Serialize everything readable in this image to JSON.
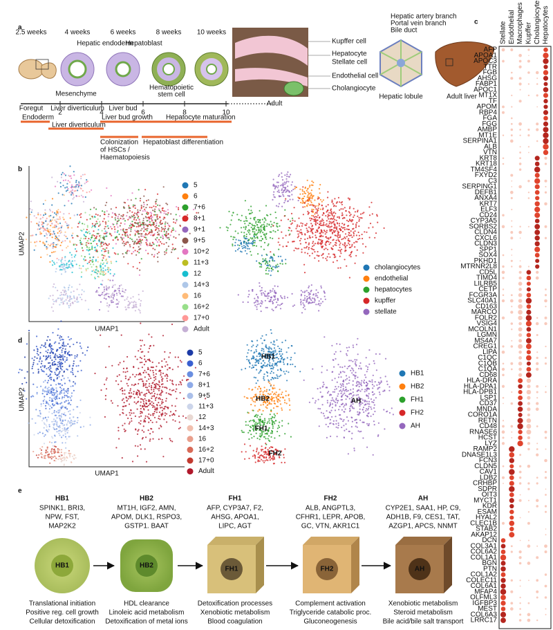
{
  "panel_labels": {
    "a": "a",
    "b": "b",
    "c": "c",
    "d": "d",
    "e": "e"
  },
  "panel_a": {
    "weeks": [
      "2.5 weeks",
      "4 weeks",
      "6 weeks",
      "8 weeks",
      "10 weeks"
    ],
    "hepatic_endoderm": "Hepatic endoderm",
    "hepatoblast": "Hepatoblast",
    "mesenchyme": "Mesenchyme",
    "stages": [
      "Foregut",
      "Liver diverticulum",
      "Liver bud"
    ],
    "hsc": [
      "Hematopoietic",
      "stem cell"
    ],
    "cells": [
      "Kupffer cell",
      "Hepatocyte",
      "Stellate cell",
      "Endothelial cell",
      "Cholangiocyte"
    ],
    "lobule_parts": [
      "Hepatic artery branch",
      "Portal vein branch",
      "Bile duct"
    ],
    "hepatic_lobule": "Hepatic lobule",
    "adult_liver": "Adult liver",
    "timeline_ticks": [
      2,
      4,
      6,
      8,
      10
    ],
    "timeline_end": "Adult",
    "timeline_bars": [
      "Endoderm",
      "Liver diverticulum",
      "Liver bud growth",
      "Hepatocyte maturation",
      "Colonization",
      "of HSCs /",
      "Haematopoiesis",
      "Hepatoblast differentiation"
    ]
  },
  "panel_b": {
    "y_label": "UMAP2",
    "x_label": "UMAP1",
    "stages": [
      {
        "name": "5",
        "color": "#1f77b4"
      },
      {
        "name": "6",
        "color": "#ff7f0e"
      },
      {
        "name": "7+6",
        "color": "#2ca02c"
      },
      {
        "name": "8+1",
        "color": "#d62728"
      },
      {
        "name": "9+1",
        "color": "#9467bd"
      },
      {
        "name": "9+5",
        "color": "#8c564b"
      },
      {
        "name": "10+2",
        "color": "#e377c2"
      },
      {
        "name": "11+3",
        "color": "#bcbd22"
      },
      {
        "name": "12",
        "color": "#17becf"
      },
      {
        "name": "14+3",
        "color": "#aec7e8"
      },
      {
        "name": "16",
        "color": "#ffbb78"
      },
      {
        "name": "16+2",
        "color": "#98df8a"
      },
      {
        "name": "17+0",
        "color": "#ff9896"
      },
      {
        "name": "Adult",
        "color": "#c5b0d5"
      }
    ],
    "cell_types": [
      {
        "name": "cholangiocytes",
        "color": "#1f77b4"
      },
      {
        "name": "endothelial",
        "color": "#ff7f0e"
      },
      {
        "name": "hepatocytes",
        "color": "#2ca02c"
      },
      {
        "name": "kupffer",
        "color": "#d62728"
      },
      {
        "name": "stellate",
        "color": "#9467bd"
      }
    ]
  },
  "panel_c": {
    "columns": [
      {
        "name": "Stellate",
        "genes": [
          "DCN",
          "COL3A1",
          "COL6A2",
          "COL1A1",
          "BGN",
          "PTN",
          "COL1A2",
          "COLEC11",
          "COL6A1",
          "MFAP4",
          "OLFML3",
          "IGFBP3",
          "MEST",
          "COL6A3",
          "LRRC17"
        ]
      },
      {
        "name": "Endothelial",
        "genes": [
          "RAMP2",
          "DNASE1L3",
          "FCN3",
          "CLDN5",
          "CAV1",
          "LDB2",
          "CRHBP",
          "SDPR",
          "OIT3",
          "MYCT1",
          "KDR",
          "ESAM",
          "HYAL2",
          "CLEC1B",
          "STAB2",
          "AKAP12"
        ]
      },
      {
        "name": "Macrophages",
        "genes": [
          "HLA-DRA",
          "HLA-DPA1",
          "HLA-DPB1",
          "LSP1",
          "CD37",
          "MNDA",
          "CORO1A",
          "RETN",
          "CD48",
          "RNASE6",
          "HCST",
          "LYZ"
        ]
      },
      {
        "name": "Kupffer",
        "genes": [
          "CD5L",
          "TIMD4",
          "LILRB5",
          "CETP",
          "FCGR3A",
          "SLC40A1",
          "CD163",
          "MARCO",
          "FOLR2",
          "VSIG4",
          "MCOLN1",
          "LGMN",
          "MS4A7",
          "CREG1",
          "LIPA",
          "C1QC",
          "C1QB",
          "C1QA",
          "CD68"
        ]
      },
      {
        "name": "Cholangiocyte",
        "genes": [
          "KRT8",
          "KRT18",
          "TM4SF4",
          "FXYD2",
          "C3",
          "SERPING1",
          "DEFB1",
          "ANXA4",
          "KRT7",
          "ELF3",
          "CD24",
          "CYP3A5",
          "SORBS2",
          "CLDN4",
          "CXCL6",
          "CLDN3",
          "SPP1",
          "SOX4",
          "PKHD1",
          "MTRNR2L8"
        ]
      },
      {
        "name": "Hepatocytes",
        "genes": [
          "AFP",
          "APOA1",
          "APOC3",
          "TTR",
          "FGB",
          "AHSG",
          "FABP1",
          "APOC1",
          "MT1X",
          "TF",
          "APOM",
          "RBP4",
          "FGA",
          "FGG",
          "AMBP",
          "MT1E",
          "SERPINA1",
          "ALB",
          "VTN"
        ]
      }
    ]
  },
  "panel_d": {
    "y_label": "UMAP2",
    "x_label": "UMAP1",
    "stages": [
      {
        "name": "5",
        "color": "#1c3aa6"
      },
      {
        "name": "6",
        "color": "#3a5fd0"
      },
      {
        "name": "7+6",
        "color": "#6a8ee0"
      },
      {
        "name": "8+1",
        "color": "#8eaae8"
      },
      {
        "name": "9+5",
        "color": "#aabfe9"
      },
      {
        "name": "11+3",
        "color": "#ccd5ea"
      },
      {
        "name": "12",
        "color": "#e9d8d2"
      },
      {
        "name": "14+3",
        "color": "#f1bfae"
      },
      {
        "name": "16",
        "color": "#e99f8c"
      },
      {
        "name": "16+2",
        "color": "#d86a58"
      },
      {
        "name": "17+0",
        "color": "#c23a30"
      },
      {
        "name": "Adult",
        "color": "#b0182b"
      }
    ],
    "states": [
      {
        "name": "HB1",
        "color": "#1f77b4"
      },
      {
        "name": "HB2",
        "color": "#ff7f0e"
      },
      {
        "name": "FH1",
        "color": "#2ca02c"
      },
      {
        "name": "FH2",
        "color": "#d62728"
      },
      {
        "name": "AH",
        "color": "#9467bd"
      }
    ]
  },
  "panel_e": {
    "stages": [
      {
        "name": "HB1",
        "genes": [
          "SPINK1, BRI3,",
          "NPW, FST,",
          "MAP2K2"
        ],
        "functions": [
          "Translational initiation",
          "Positive reg. cell growth",
          "Cellular detoxification"
        ]
      },
      {
        "name": "HB2",
        "genes": [
          "MT1H, IGF2, AMN,",
          "APOM, DLK1, RSPO3,",
          "GSTP1. BAAT"
        ],
        "functions": [
          "HDL clearance",
          "Linoleic acid metabolism",
          "Detoxification of metal ions"
        ]
      },
      {
        "name": "FH1",
        "genes": [
          "AFP, CYP3A7, F2,",
          "AHSG, APOA1,",
          "LIPC, AGT"
        ],
        "functions": [
          "Detoxification processes",
          "Xenobiotic metabolism",
          "Blood coagulation"
        ]
      },
      {
        "name": "FH2",
        "genes": [
          "ALB, ANGPTL3,",
          "CFHR1, LEPR, APOB,",
          "GC, VTN, AKR1C1"
        ],
        "functions": [
          "Complement activation",
          "Triglyceride catabolic proc.",
          "Gluconeogenesis"
        ]
      },
      {
        "name": "AH",
        "genes": [
          "CYP2E1, SAA1, HP, C9,",
          "ADH1B, F9, CES1, TAT,",
          "AZGP1, APCS, NNMT"
        ],
        "functions": [
          "Xenobiotic metabolism",
          "Steroid metabolism",
          "Bile acid/bile salt transport"
        ]
      }
    ]
  }
}
